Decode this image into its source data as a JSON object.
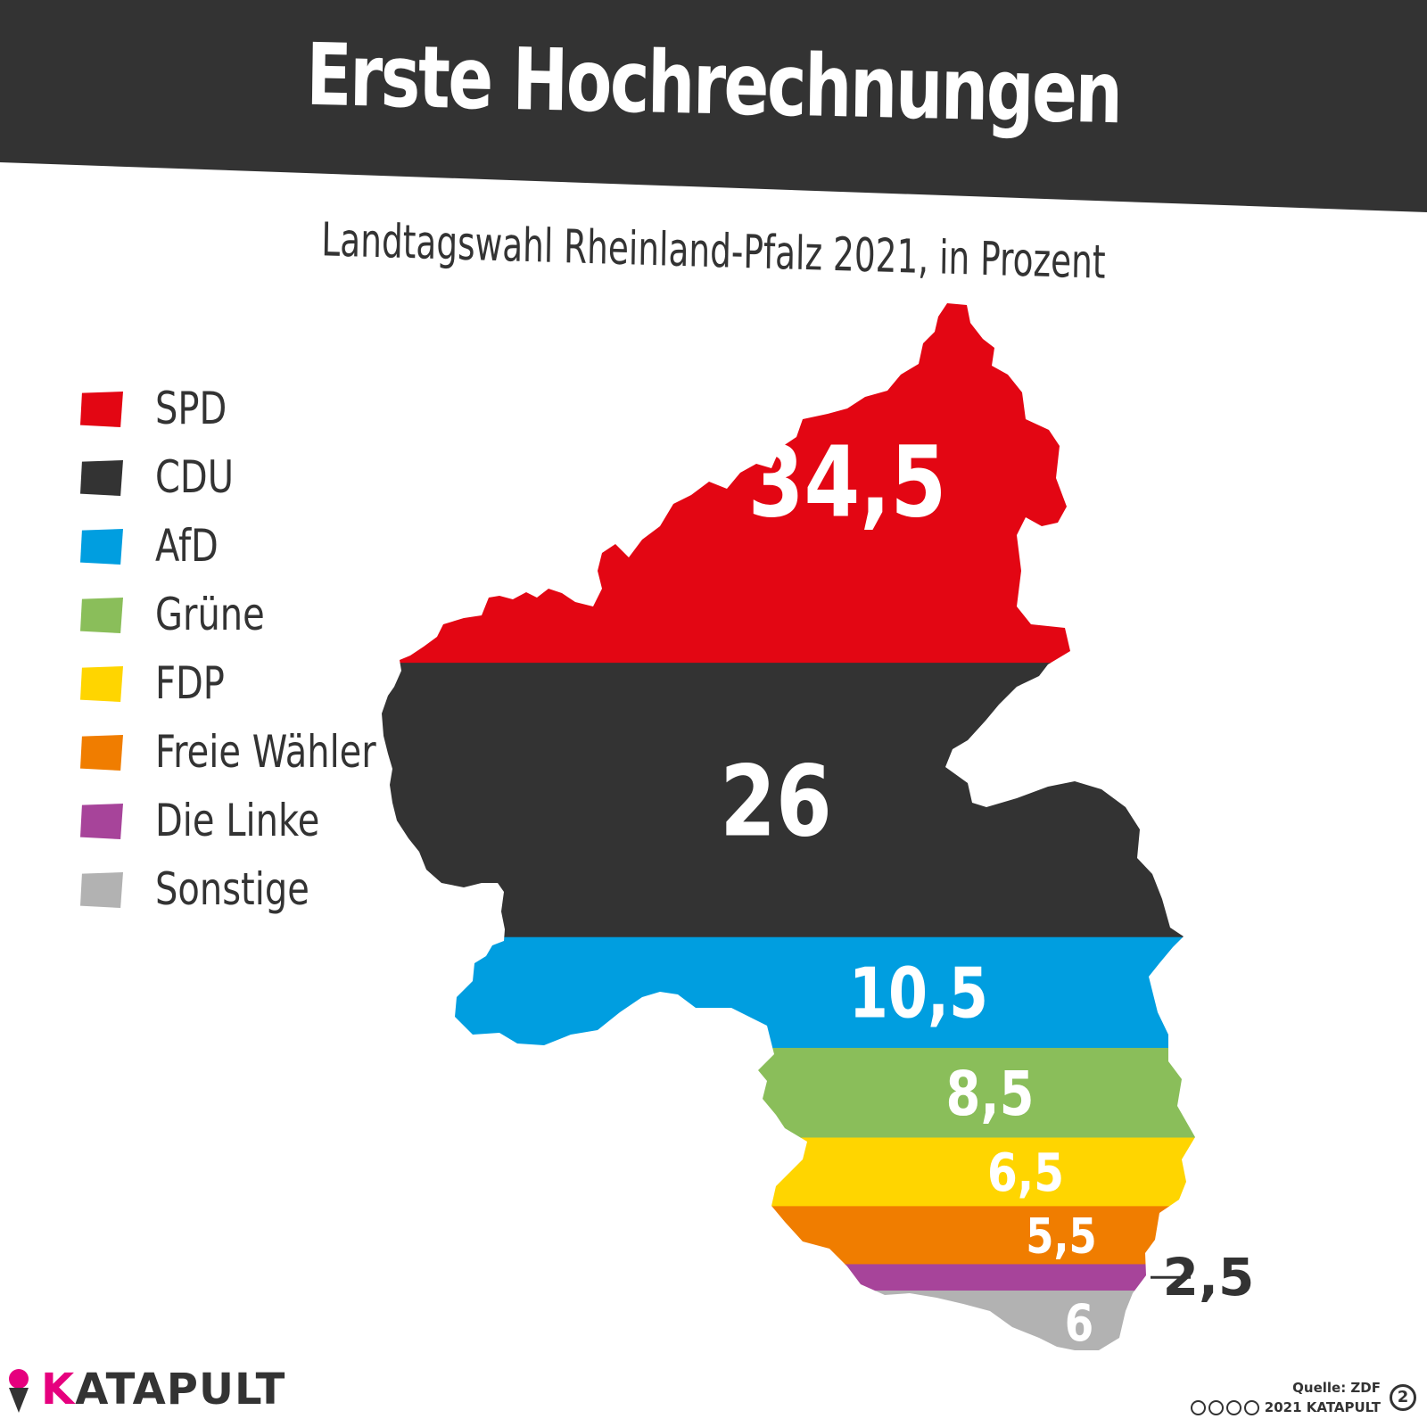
{
  "title": "Erste Hochrechnungen",
  "subtitle": "Landtagswahl Rheinland-Pfalz 2021, in Prozent",
  "colors": {
    "header": "#333333",
    "SPD": "#e30613",
    "CDU": "#333333",
    "AfD": "#009ee0",
    "Grüne": "#8abe5a",
    "FDP": "#ffd500",
    "Freie Wähler": "#f07d00",
    "Die Linke": "#a7449a",
    "Sonstige": "#b2b2b2",
    "brand": "#e6007e"
  },
  "chart_data": {
    "type": "stacked-map",
    "title": "Erste Hochrechnungen",
    "subtitle": "Landtagswahl Rheinland-Pfalz 2021, in Prozent",
    "unit": "Prozent",
    "categories": [
      "SPD",
      "CDU",
      "AfD",
      "Grüne",
      "FDP",
      "Freie Wähler",
      "Die Linke",
      "Sonstige"
    ],
    "values": [
      34.5,
      26,
      10.5,
      8.5,
      6.5,
      5.5,
      2.5,
      6
    ],
    "labels": [
      "34,5",
      "26",
      "10,5",
      "8,5",
      "6,5",
      "5,5",
      "2,5",
      "6"
    ],
    "legend": [
      {
        "label": "SPD",
        "color": "#e30613"
      },
      {
        "label": "CDU",
        "color": "#333333"
      },
      {
        "label": "AfD",
        "color": "#009ee0"
      },
      {
        "label": "Grüne",
        "color": "#8abe5a"
      },
      {
        "label": "FDP",
        "color": "#ffd500"
      },
      {
        "label": "Freie Wähler",
        "color": "#f07d00"
      },
      {
        "label": "Die Linke",
        "color": "#a7449a"
      },
      {
        "label": "Sonstige",
        "color": "#b2b2b2"
      }
    ]
  },
  "footer": {
    "brand_initial": "K",
    "brand_rest": "ATAPULT",
    "source": "Quelle: ZDF",
    "copyright": "2021 KATAPULT",
    "edition": "2"
  }
}
